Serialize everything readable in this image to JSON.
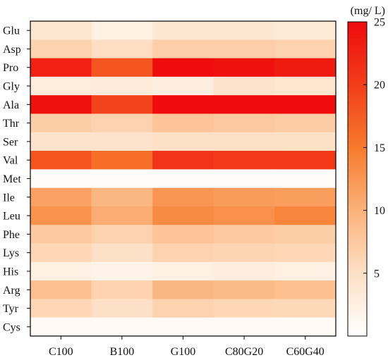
{
  "chart_data": {
    "type": "heatmap",
    "title": "",
    "xlabel": "",
    "ylabel": "",
    "x_categories": [
      "C100",
      "B100",
      "G100",
      "C80G20",
      "C60G40"
    ],
    "y_categories": [
      "Glu",
      "Asp",
      "Pro",
      "Gly",
      "Ala",
      "Thr",
      "Ser",
      "Val",
      "Met",
      "Ile",
      "Leu",
      "Phe",
      "Lys",
      "His",
      "Arg",
      "Tyr",
      "Cys"
    ],
    "values": [
      [
        4.0,
        2.5,
        3.8,
        3.8,
        3.5
      ],
      [
        6.5,
        5.2,
        6.8,
        6.8,
        6.5
      ],
      [
        23.0,
        18.0,
        25.5,
        24.5,
        23.5
      ],
      [
        3.0,
        3.3,
        2.8,
        4.5,
        4.2
      ],
      [
        24.5,
        19.5,
        26.0,
        25.0,
        25.5
      ],
      [
        7.0,
        6.5,
        8.0,
        7.5,
        7.2
      ],
      [
        4.5,
        4.5,
        5.0,
        5.0,
        4.8
      ],
      [
        18.0,
        16.0,
        21.0,
        20.5,
        20.5
      ],
      [
        0.5,
        0.5,
        0.5,
        0.5,
        0.5
      ],
      [
        11.5,
        9.5,
        12.5,
        12.0,
        11.8
      ],
      [
        12.8,
        10.5,
        13.5,
        13.0,
        14.0
      ],
      [
        7.5,
        6.5,
        8.0,
        7.5,
        7.0
      ],
      [
        6.0,
        5.0,
        6.5,
        6.2,
        6.0
      ],
      [
        2.5,
        2.0,
        2.5,
        2.8,
        2.5
      ],
      [
        8.5,
        6.5,
        9.5,
        9.0,
        8.5
      ],
      [
        6.0,
        5.0,
        6.5,
        6.0,
        5.8
      ],
      [
        0.8,
        0.8,
        0.8,
        0.8,
        0.8
      ]
    ],
    "colorbar": {
      "min": 0,
      "max": 25,
      "ticks": [
        5,
        10,
        15,
        20,
        25
      ],
      "unit_label": "(mg/ L)",
      "colors": [
        "#ffffff",
        "#fde0c5",
        "#fbb27a",
        "#f77a2c",
        "#f23d1a",
        "#ee0c0c"
      ]
    },
    "grid": false
  }
}
